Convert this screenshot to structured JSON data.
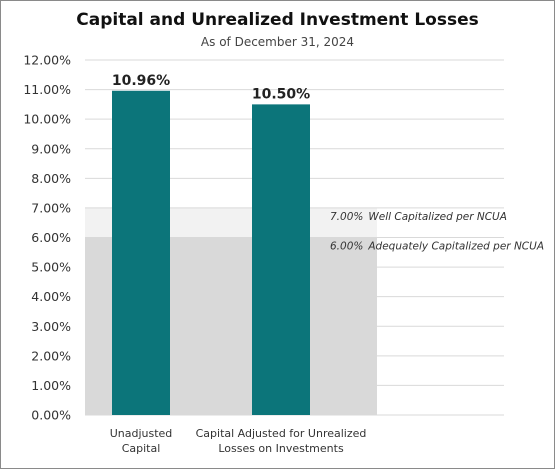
{
  "chart_data": {
    "type": "bar",
    "title": "Capital and Unrealized Investment Losses",
    "subtitle": "As of December 31, 2024",
    "categories": [
      [
        "Unadjusted",
        "Capital"
      ],
      [
        "Capital Adjusted for Unrealized",
        "Losses on Investments"
      ]
    ],
    "values": [
      10.96,
      10.5
    ],
    "value_labels": [
      "10.96%",
      "10.50%"
    ],
    "ylim": [
      0,
      12
    ],
    "y_ticks": [
      {
        "value": 0,
        "label": "0.00%"
      },
      {
        "value": 1,
        "label": "1.00%"
      },
      {
        "value": 2,
        "label": "2.00%"
      },
      {
        "value": 3,
        "label": "3.00%"
      },
      {
        "value": 4,
        "label": "4.00%"
      },
      {
        "value": 5,
        "label": "5.00%"
      },
      {
        "value": 6,
        "label": "6.00%"
      },
      {
        "value": 7,
        "label": "7.00%"
      },
      {
        "value": 8,
        "label": "8.00%"
      },
      {
        "value": 9,
        "label": "9.00%"
      },
      {
        "value": 10,
        "label": "10.00%"
      },
      {
        "value": 11,
        "label": "11.00%"
      },
      {
        "value": 12,
        "label": "12.00%"
      }
    ],
    "thresholds": [
      {
        "value": 7,
        "percent": "7.00%",
        "label": "Well Capitalized per NCUA"
      },
      {
        "value": 6,
        "percent": "6.00%",
        "label": "Adequately Capitalized per NCUA"
      }
    ],
    "grid": true,
    "colors": {
      "bar": "#0c757a",
      "adequate_band": "#d9d9d9",
      "well_band": "#f2f2f2",
      "grid": "#d9d9d9"
    }
  }
}
